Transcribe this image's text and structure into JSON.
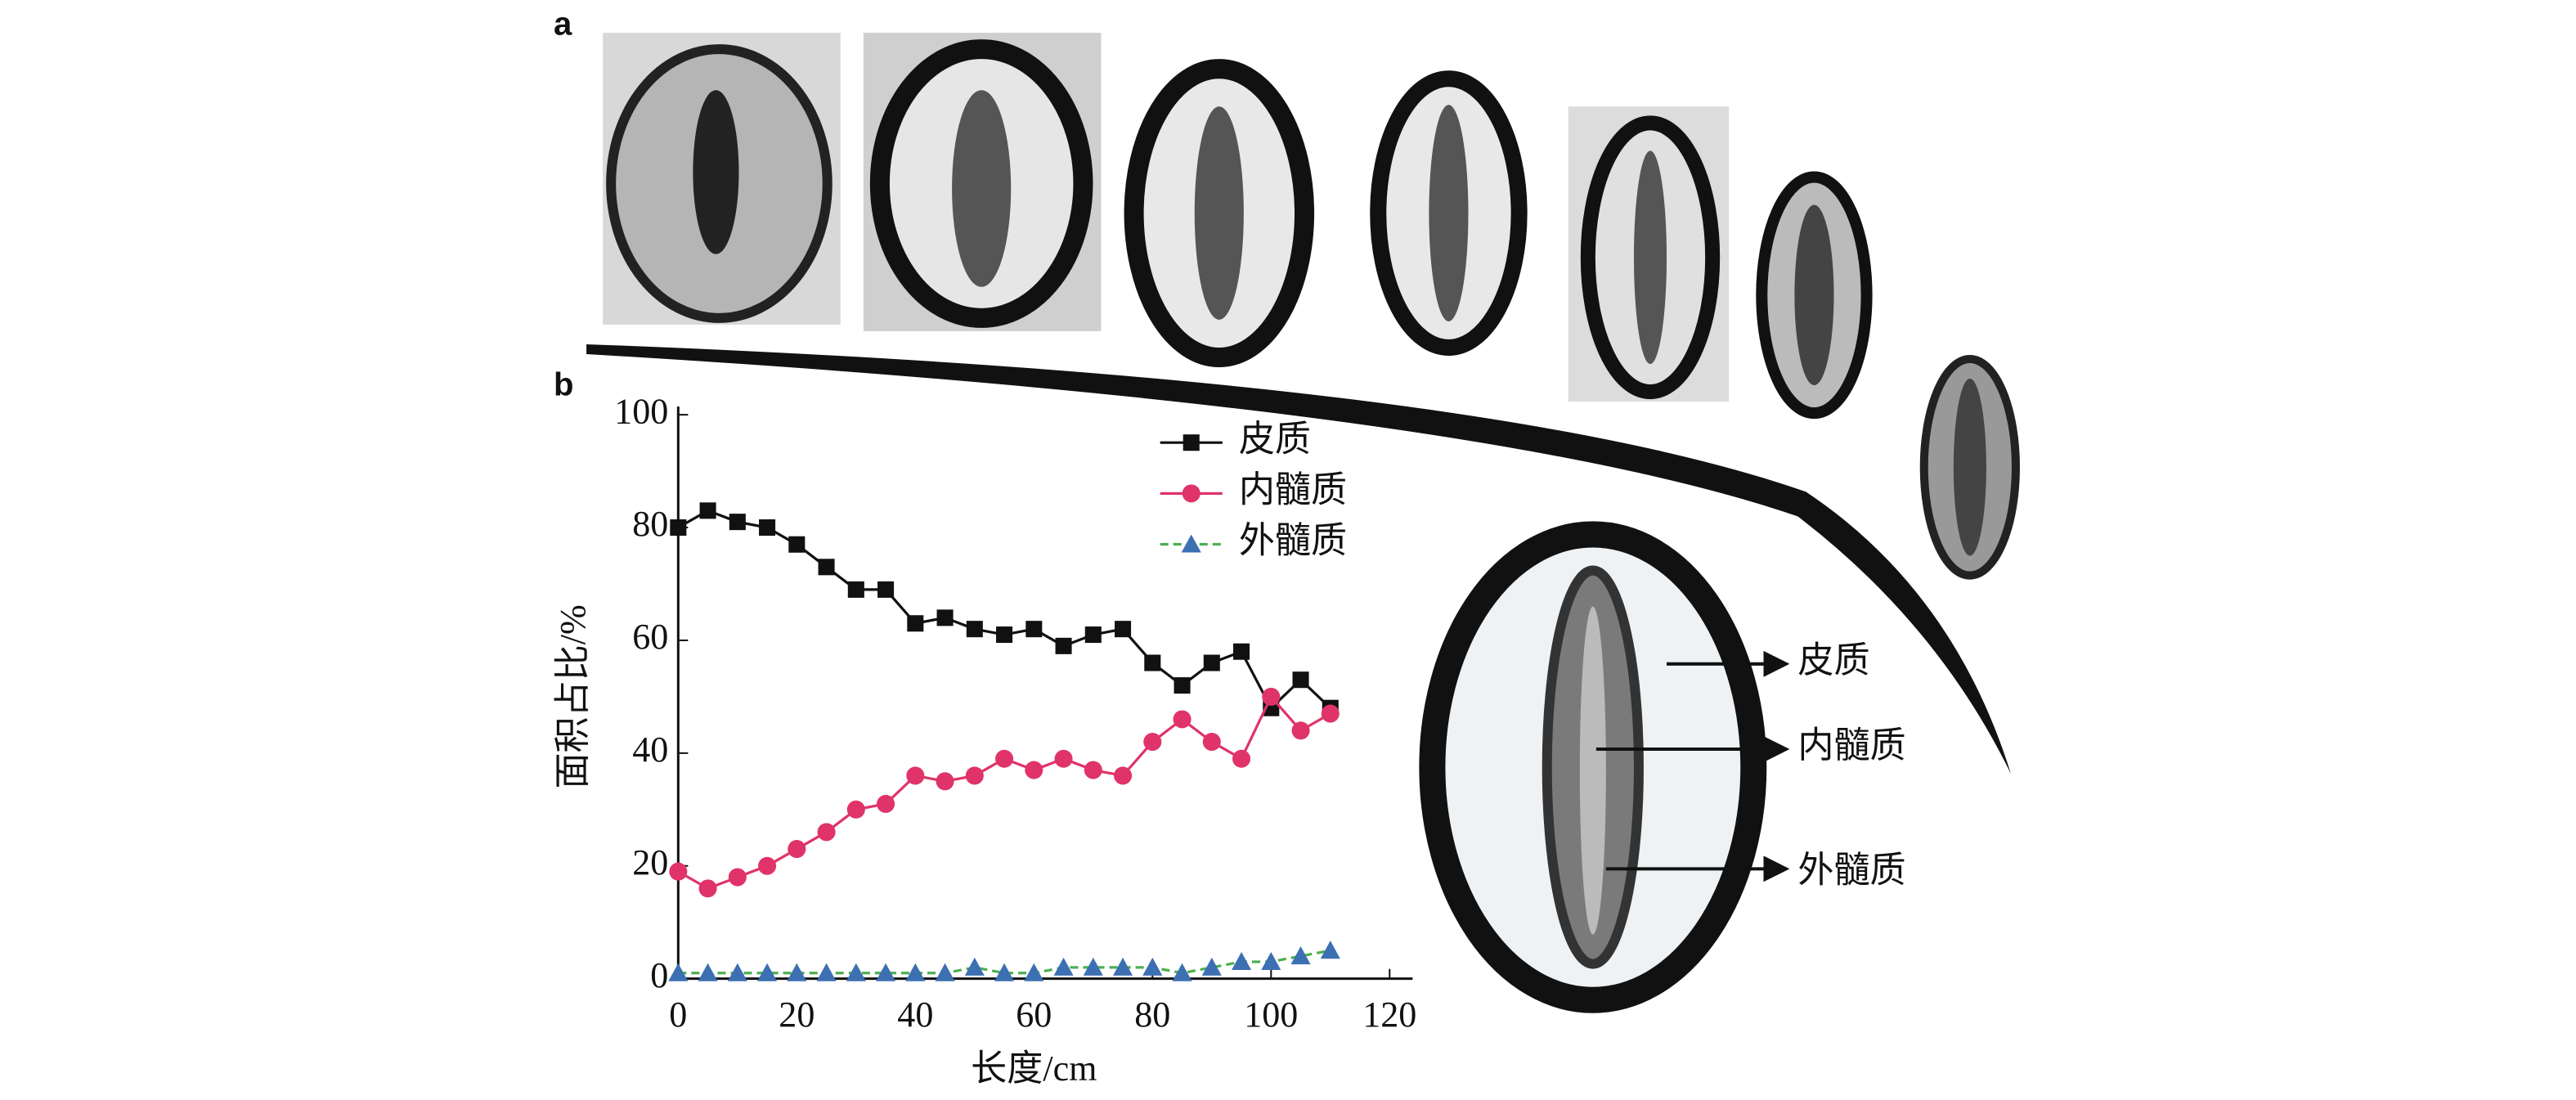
{
  "panel_a_label": "a",
  "panel_b_label": "b",
  "annotations": [
    "皮质",
    "内髓质",
    "外髓质"
  ],
  "chart_data": {
    "type": "line",
    "x_label": "长度/cm",
    "y_label": "面积占比/%",
    "x": [
      0,
      5,
      10,
      15,
      20,
      25,
      30,
      35,
      40,
      45,
      50,
      55,
      60,
      65,
      70,
      75,
      80,
      85,
      90,
      95,
      100,
      105,
      110
    ],
    "series": [
      {
        "name": "皮质",
        "color": "#111111",
        "line_color": "#111111",
        "marker": "square",
        "values": [
          80,
          83,
          81,
          80,
          77,
          73,
          69,
          69,
          63,
          64,
          62,
          61,
          62,
          59,
          61,
          62,
          56,
          52,
          56,
          58,
          48,
          53,
          48
        ]
      },
      {
        "name": "内髓质",
        "color": "#e0336a",
        "line_color": "#e0336a",
        "marker": "circle",
        "values": [
          19,
          16,
          18,
          20,
          23,
          26,
          30,
          31,
          36,
          35,
          36,
          39,
          37,
          39,
          37,
          36,
          42,
          46,
          42,
          39,
          50,
          44,
          47
        ]
      },
      {
        "name": "外髓质",
        "color": "#3d6fb3",
        "line_color": "#4caf50",
        "marker": "triangle",
        "values": [
          1,
          1,
          1,
          1,
          1,
          1,
          1,
          1,
          1,
          1,
          2,
          1,
          1,
          2,
          2,
          2,
          2,
          1,
          2,
          3,
          3,
          4,
          5
        ]
      }
    ],
    "xlim": [
      0,
      120
    ],
    "xticks": [
      0,
      20,
      40,
      60,
      80,
      100,
      120
    ],
    "ylim": [
      0,
      100
    ],
    "yticks": [
      0,
      20,
      40,
      60,
      80,
      100
    ]
  }
}
